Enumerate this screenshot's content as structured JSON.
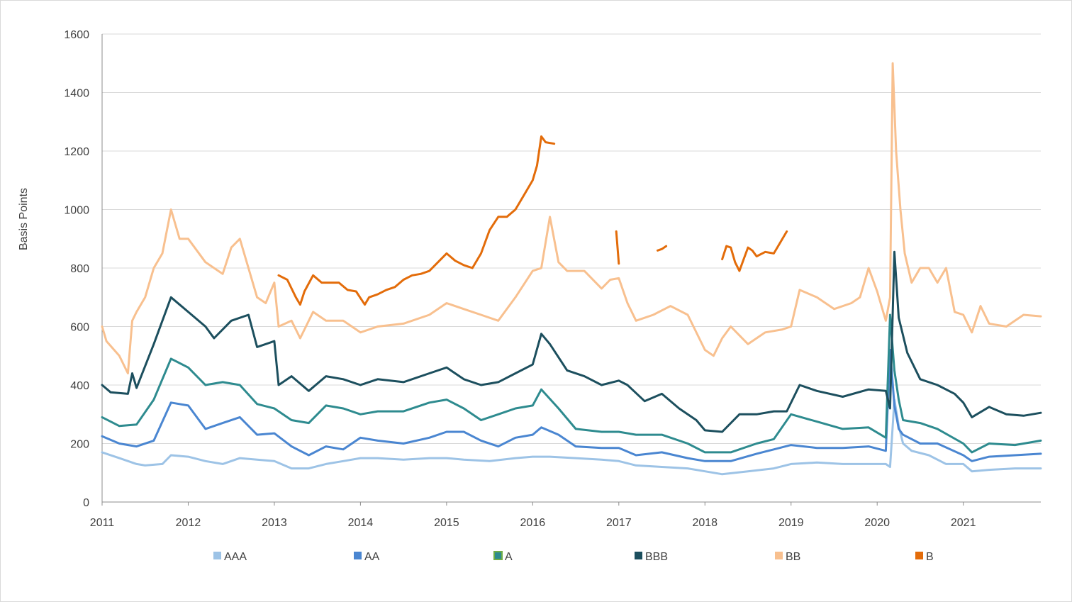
{
  "chart_data": {
    "type": "line",
    "title": "",
    "xlabel": "",
    "ylabel": "Basis Points",
    "xlim": [
      2011,
      2021.9
    ],
    "ylim": [
      0,
      1600
    ],
    "yticks": [
      0,
      200,
      400,
      600,
      800,
      1000,
      1200,
      1400,
      1600
    ],
    "xticks": [
      2011,
      2012,
      2013,
      2014,
      2015,
      2016,
      2017,
      2018,
      2019,
      2020,
      2021
    ],
    "grid": "horizontal",
    "legend_position": "bottom",
    "series": [
      {
        "name": "AAA",
        "color": "#9dc3e6",
        "x": [
          2011.0,
          2011.2,
          2011.4,
          2011.5,
          2011.7,
          2011.8,
          2012.0,
          2012.2,
          2012.4,
          2012.6,
          2012.8,
          2013.0,
          2013.2,
          2013.4,
          2013.6,
          2013.8,
          2014.0,
          2014.2,
          2014.5,
          2014.8,
          2015.0,
          2015.2,
          2015.5,
          2015.8,
          2016.0,
          2016.2,
          2016.5,
          2016.8,
          2017.0,
          2017.2,
          2017.5,
          2017.8,
          2018.0,
          2018.2,
          2018.5,
          2018.8,
          2019.0,
          2019.3,
          2019.6,
          2019.9,
          2020.1,
          2020.15,
          2020.2,
          2020.25,
          2020.3,
          2020.4,
          2020.6,
          2020.8,
          2021.0,
          2021.1,
          2021.3,
          2021.6,
          2021.9
        ],
        "y": [
          170,
          150,
          130,
          125,
          130,
          160,
          155,
          140,
          130,
          150,
          145,
          140,
          115,
          115,
          130,
          140,
          150,
          150,
          145,
          150,
          150,
          145,
          140,
          150,
          155,
          155,
          150,
          145,
          140,
          125,
          120,
          115,
          105,
          95,
          105,
          115,
          130,
          135,
          130,
          130,
          130,
          120,
          350,
          260,
          200,
          175,
          160,
          130,
          130,
          105,
          110,
          115,
          115
        ]
      },
      {
        "name": "AA",
        "color": "#4a86d1",
        "x": [
          2011.0,
          2011.2,
          2011.4,
          2011.6,
          2011.8,
          2012.0,
          2012.2,
          2012.4,
          2012.6,
          2012.8,
          2013.0,
          2013.2,
          2013.4,
          2013.6,
          2013.8,
          2014.0,
          2014.2,
          2014.5,
          2014.8,
          2015.0,
          2015.2,
          2015.4,
          2015.6,
          2015.8,
          2016.0,
          2016.1,
          2016.3,
          2016.5,
          2016.8,
          2017.0,
          2017.2,
          2017.5,
          2017.8,
          2018.0,
          2018.3,
          2018.6,
          2018.8,
          2019.0,
          2019.3,
          2019.6,
          2019.9,
          2020.1,
          2020.15,
          2020.2,
          2020.25,
          2020.3,
          2020.5,
          2020.7,
          2021.0,
          2021.1,
          2021.3,
          2021.6,
          2021.9
        ],
        "y": [
          225,
          200,
          190,
          210,
          340,
          330,
          250,
          270,
          290,
          230,
          235,
          190,
          160,
          190,
          180,
          220,
          210,
          200,
          220,
          240,
          240,
          210,
          190,
          220,
          230,
          255,
          230,
          190,
          185,
          185,
          160,
          170,
          150,
          140,
          140,
          165,
          180,
          195,
          185,
          185,
          190,
          175,
          520,
          330,
          250,
          230,
          200,
          200,
          160,
          140,
          155,
          160,
          165
        ]
      },
      {
        "name": "A",
        "color": "#2e8b8f",
        "x": [
          2011.0,
          2011.2,
          2011.4,
          2011.6,
          2011.8,
          2012.0,
          2012.2,
          2012.4,
          2012.6,
          2012.8,
          2013.0,
          2013.2,
          2013.4,
          2013.6,
          2013.8,
          2014.0,
          2014.2,
          2014.5,
          2014.8,
          2015.0,
          2015.2,
          2015.4,
          2015.6,
          2015.8,
          2016.0,
          2016.1,
          2016.3,
          2016.5,
          2016.8,
          2017.0,
          2017.2,
          2017.5,
          2017.8,
          2018.0,
          2018.3,
          2018.6,
          2018.8,
          2019.0,
          2019.3,
          2019.6,
          2019.9,
          2020.1,
          2020.15,
          2020.2,
          2020.25,
          2020.3,
          2020.5,
          2020.7,
          2021.0,
          2021.1,
          2021.3,
          2021.6,
          2021.9
        ],
        "y": [
          290,
          260,
          265,
          350,
          490,
          460,
          400,
          410,
          400,
          335,
          320,
          280,
          270,
          330,
          320,
          300,
          310,
          310,
          340,
          350,
          320,
          280,
          300,
          320,
          330,
          385,
          320,
          250,
          240,
          240,
          230,
          230,
          200,
          170,
          170,
          200,
          215,
          300,
          275,
          250,
          255,
          220,
          640,
          450,
          350,
          280,
          270,
          250,
          200,
          170,
          200,
          195,
          210
        ]
      },
      {
        "name": "BBB",
        "color": "#1c4f5e",
        "x": [
          2011.0,
          2011.1,
          2011.3,
          2011.35,
          2011.4,
          2011.6,
          2011.8,
          2012.0,
          2012.2,
          2012.3,
          2012.5,
          2012.7,
          2012.8,
          2013.0,
          2013.05,
          2013.2,
          2013.4,
          2013.6,
          2013.8,
          2014.0,
          2014.2,
          2014.5,
          2014.8,
          2015.0,
          2015.2,
          2015.4,
          2015.6,
          2015.8,
          2016.0,
          2016.1,
          2016.2,
          2016.4,
          2016.6,
          2016.8,
          2017.0,
          2017.1,
          2017.3,
          2017.5,
          2017.7,
          2017.9,
          2018.0,
          2018.2,
          2018.4,
          2018.6,
          2018.8,
          2018.95,
          2019.1,
          2019.3,
          2019.6,
          2019.9,
          2020.1,
          2020.15,
          2020.2,
          2020.25,
          2020.35,
          2020.5,
          2020.7,
          2020.9,
          2021.0,
          2021.1,
          2021.3,
          2021.5,
          2021.7,
          2021.9
        ],
        "y": [
          400,
          375,
          370,
          440,
          390,
          540,
          700,
          650,
          600,
          560,
          620,
          640,
          530,
          550,
          400,
          430,
          380,
          430,
          420,
          400,
          420,
          410,
          440,
          460,
          420,
          400,
          410,
          440,
          470,
          575,
          540,
          450,
          430,
          400,
          415,
          400,
          345,
          370,
          320,
          280,
          245,
          240,
          300,
          300,
          310,
          310,
          400,
          380,
          360,
          385,
          380,
          320,
          855,
          630,
          510,
          420,
          400,
          370,
          340,
          290,
          325,
          300,
          295,
          305
        ]
      },
      {
        "name": "BB",
        "color": "#f8c08f",
        "x": [
          2011.0,
          2011.05,
          2011.2,
          2011.3,
          2011.35,
          2011.4,
          2011.5,
          2011.6,
          2011.7,
          2011.8,
          2011.9,
          2012.0,
          2012.2,
          2012.4,
          2012.5,
          2012.6,
          2012.8,
          2012.9,
          2013.0,
          2013.05,
          2013.2,
          2013.3,
          2013.45,
          2013.6,
          2013.8,
          2014.0,
          2014.2,
          2014.5,
          2014.8,
          2015.0,
          2015.2,
          2015.4,
          2015.6,
          2015.8,
          2016.0,
          2016.1,
          2016.2,
          2016.3,
          2016.4,
          2016.6,
          2016.8,
          2016.9,
          2017.0,
          2017.1,
          2017.2,
          2017.4,
          2017.6,
          2017.8,
          2018.0,
          2018.1,
          2018.2,
          2018.3,
          2018.5,
          2018.7,
          2018.9,
          2019.0,
          2019.1,
          2019.3,
          2019.5,
          2019.7,
          2019.8,
          2019.9,
          2020.0,
          2020.1,
          2020.15,
          2020.18,
          2020.22,
          2020.27,
          2020.32,
          2020.4,
          2020.5,
          2020.6,
          2020.7,
          2020.8,
          2020.9,
          2021.0,
          2021.1,
          2021.2,
          2021.3,
          2021.5,
          2021.7,
          2021.9
        ],
        "y": [
          600,
          550,
          500,
          440,
          620,
          650,
          700,
          800,
          850,
          1000,
          900,
          900,
          820,
          780,
          870,
          900,
          700,
          680,
          750,
          600,
          620,
          560,
          650,
          620,
          620,
          580,
          600,
          610,
          640,
          680,
          660,
          640,
          620,
          700,
          790,
          800,
          975,
          820,
          790,
          790,
          730,
          760,
          765,
          680,
          620,
          640,
          670,
          640,
          520,
          500,
          560,
          600,
          540,
          580,
          590,
          600,
          725,
          700,
          660,
          680,
          700,
          800,
          720,
          620,
          700,
          1500,
          1200,
          1000,
          850,
          750,
          800,
          800,
          750,
          800,
          650,
          640,
          580,
          670,
          610,
          600,
          640,
          635
        ]
      },
      {
        "name": "B",
        "color": "#e36c0a",
        "segments": [
          {
            "x": [
              2013.05,
              2013.15,
              2013.25,
              2013.3,
              2013.35,
              2013.45,
              2013.55,
              2013.65,
              2013.75,
              2013.85,
              2013.95,
              2014.05,
              2014.1,
              2014.2,
              2014.3,
              2014.4,
              2014.5,
              2014.6,
              2014.7,
              2014.8,
              2014.9,
              2015.0,
              2015.1,
              2015.2,
              2015.3,
              2015.4,
              2015.5,
              2015.6,
              2015.7,
              2015.8,
              2015.9,
              2016.0,
              2016.05,
              2016.1,
              2016.15,
              2016.25
            ],
            "y": [
              775,
              760,
              700,
              675,
              720,
              775,
              750,
              750,
              750,
              725,
              720,
              675,
              700,
              710,
              725,
              735,
              760,
              775,
              780,
              790,
              820,
              850,
              825,
              810,
              800,
              850,
              930,
              975,
              975,
              1000,
              1050,
              1100,
              1150,
              1250,
              1230,
              1225
            ]
          },
          {
            "x": [
              2016.97,
              2017.0
            ],
            "y": [
              925,
              815
            ]
          },
          {
            "x": [
              2017.45,
              2017.5,
              2017.55
            ],
            "y": [
              860,
              865,
              875
            ]
          },
          {
            "x": [
              2018.2,
              2018.25,
              2018.3,
              2018.35,
              2018.4,
              2018.45,
              2018.5,
              2018.55,
              2018.6,
              2018.7,
              2018.8,
              2018.85,
              2018.95
            ],
            "y": [
              830,
              875,
              870,
              820,
              790,
              830,
              870,
              860,
              840,
              855,
              850,
              875,
              925
            ]
          }
        ]
      }
    ]
  }
}
